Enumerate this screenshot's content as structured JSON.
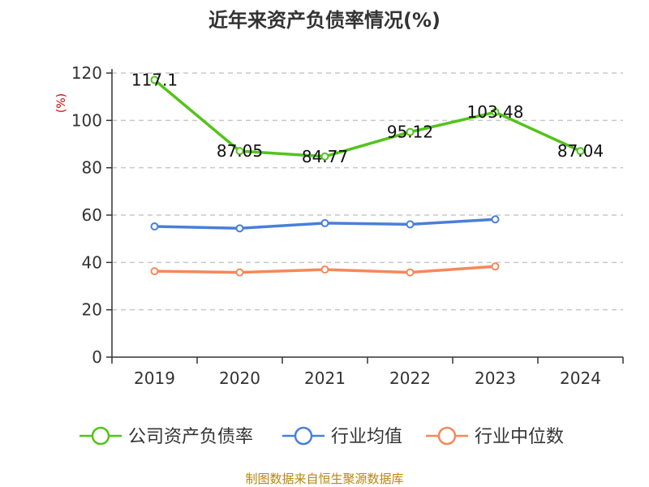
{
  "chart_data": {
    "type": "line",
    "title": "近年来资产负债率情况(%)",
    "ylabel": "(%)",
    "categories": [
      "2019",
      "2020",
      "2021",
      "2022",
      "2023",
      "2024"
    ],
    "ylim": [
      0,
      120
    ],
    "yticks": [
      "0",
      "20",
      "40",
      "60",
      "80",
      "100",
      "120"
    ],
    "grid": true,
    "legend_position": "bottom",
    "source": "制图数据来自恒生聚源数据库",
    "series": [
      {
        "name": "公司资产负债率",
        "color": "#52c41a",
        "values": [
          117.1,
          87.05,
          84.77,
          95.12,
          103.48,
          87.04
        ],
        "labels": [
          "117.1",
          "87.05",
          "84.77",
          "95.12",
          "103.48",
          "87.04"
        ]
      },
      {
        "name": "行业均值",
        "color": "#4a7fd8",
        "values": [
          55.2,
          54.4,
          56.6,
          56.1,
          58.2,
          null
        ]
      },
      {
        "name": "行业中位数",
        "color": "#f5885a",
        "values": [
          36.3,
          35.8,
          37.0,
          35.8,
          38.3,
          null
        ]
      }
    ]
  }
}
